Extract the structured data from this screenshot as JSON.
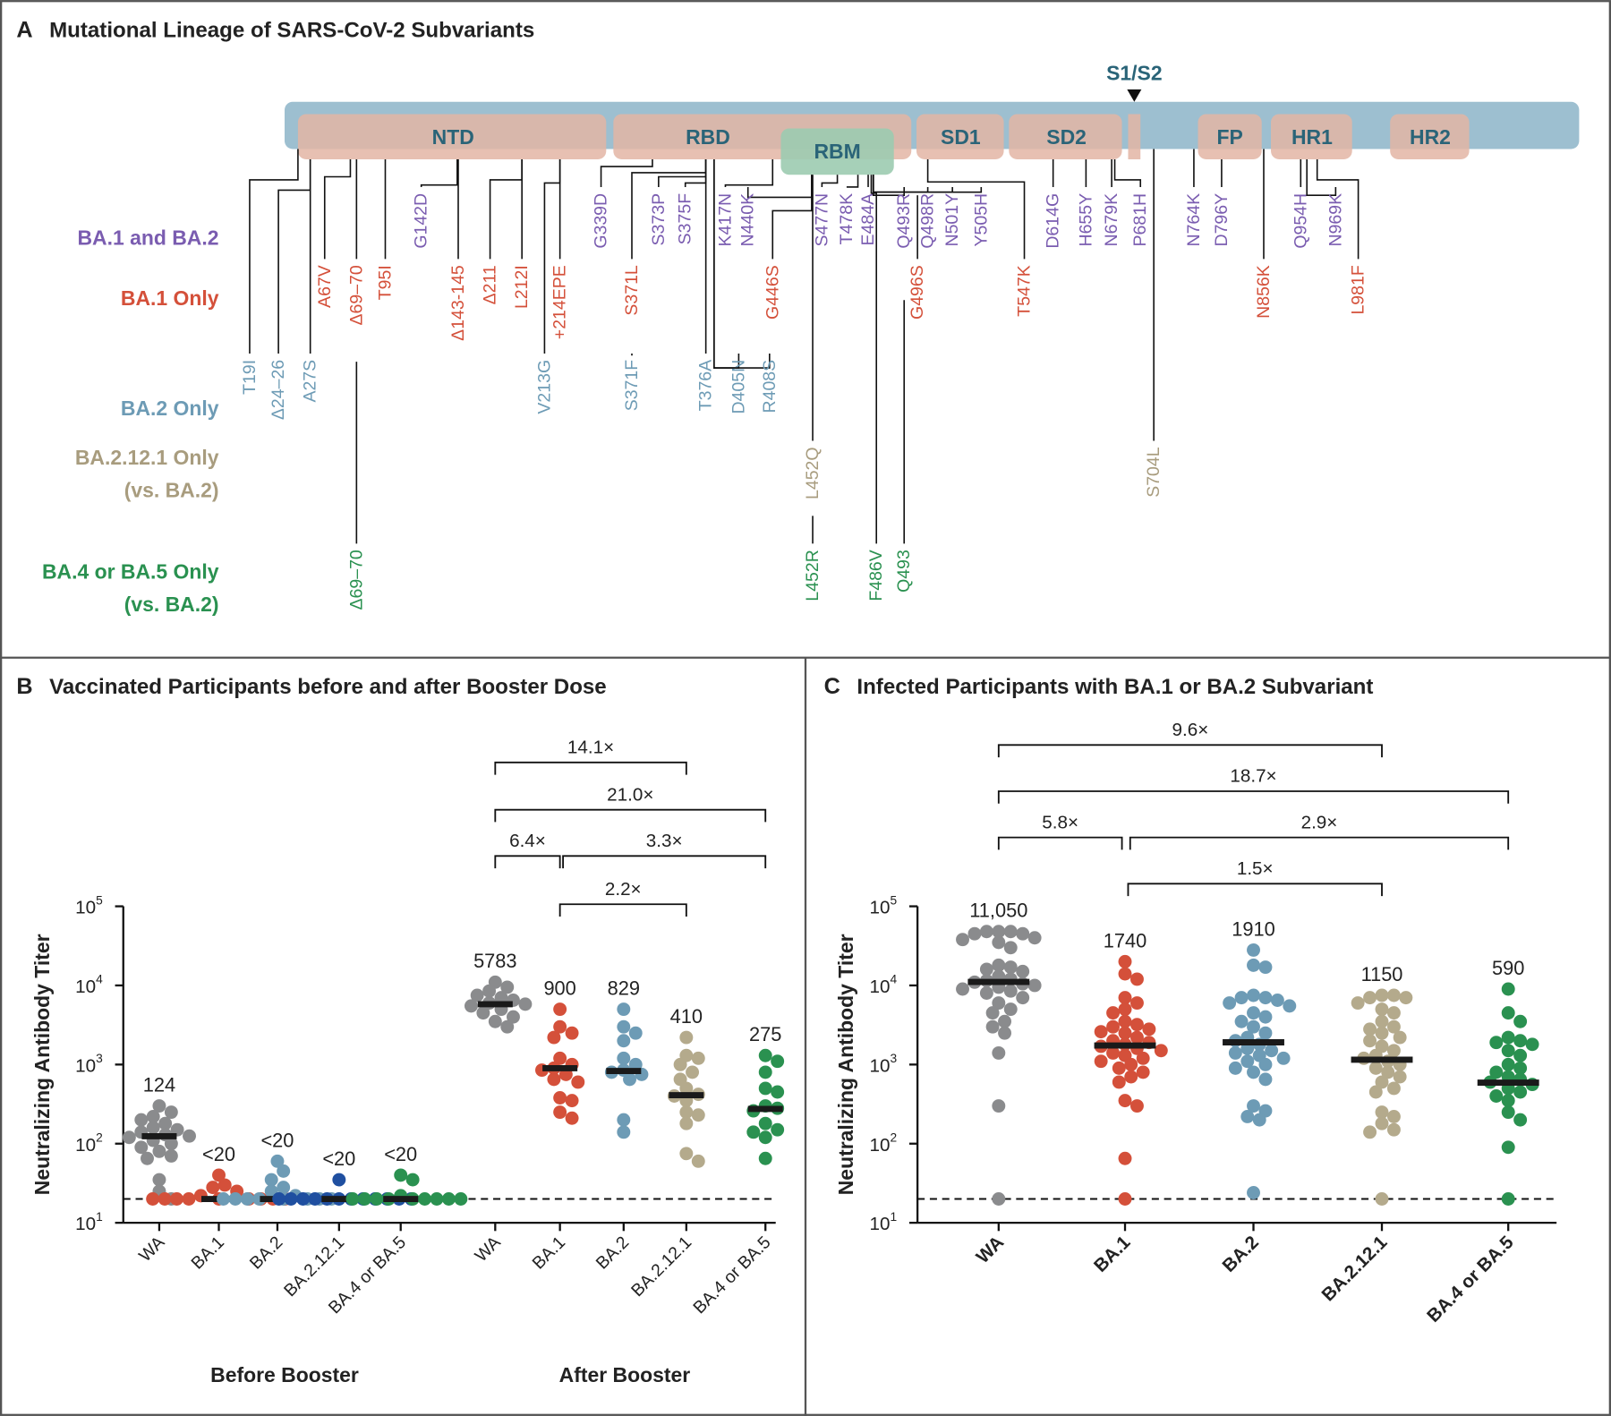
{
  "panel_a": {
    "letter": "A",
    "title": "Mutational Lineage of SARS-CoV-2 Subvariants",
    "cleavage_label": "S1/S2",
    "domains": [
      "NTD",
      "RBD",
      "RBM",
      "SD1",
      "SD2",
      "FP",
      "HR1",
      "HR2"
    ],
    "colors": {
      "bar": "#9dbfd0",
      "domain": "#e3b5a4",
      "rbm": "#9ccbb0",
      "domain_text": "#2a6478"
    },
    "groups": {
      "both": {
        "label": "BA.1 and BA.2",
        "color": "#7a5cb0"
      },
      "ba1": {
        "label": "BA.1 Only",
        "color": "#d4503a"
      },
      "ba2": {
        "label": "BA.2 Only",
        "color": "#6d9bb5"
      },
      "ba2121": {
        "label": "BA.2.12.1 Only",
        "sub": "(vs. BA.2)",
        "color": "#a89c7e"
      },
      "ba45": {
        "label": "BA.4 or BA.5 Only",
        "sub": "(vs. BA.2)",
        "color": "#2a9150"
      }
    },
    "mutations": [
      {
        "label": "T19I",
        "group": "ba2"
      },
      {
        "label": "Δ24–26",
        "group": "ba2"
      },
      {
        "label": "A27S",
        "group": "ba2"
      },
      {
        "label": "A67V",
        "group": "ba1"
      },
      {
        "label": "Δ69–70",
        "group": "ba1"
      },
      {
        "label": "Δ69–70",
        "group": "ba45"
      },
      {
        "label": "T95I",
        "group": "ba1"
      },
      {
        "label": "G142D",
        "group": "both"
      },
      {
        "label": "Δ143-145",
        "group": "ba1"
      },
      {
        "label": "Δ211",
        "group": "ba1"
      },
      {
        "label": "L212I",
        "group": "ba1"
      },
      {
        "label": "V213G",
        "group": "ba2"
      },
      {
        "label": "+214EPE",
        "group": "ba1"
      },
      {
        "label": "G339D",
        "group": "both"
      },
      {
        "label": "S371L",
        "group": "ba1"
      },
      {
        "label": "S371F",
        "group": "ba2"
      },
      {
        "label": "S373P",
        "group": "both"
      },
      {
        "label": "S375F",
        "group": "both"
      },
      {
        "label": "T376A",
        "group": "ba2"
      },
      {
        "label": "K417N",
        "group": "both"
      },
      {
        "label": "N440K",
        "group": "both"
      },
      {
        "label": "D405N",
        "group": "ba2"
      },
      {
        "label": "R408S",
        "group": "ba2"
      },
      {
        "label": "G446S",
        "group": "ba1"
      },
      {
        "label": "L452Q",
        "group": "ba2121"
      },
      {
        "label": "L452R",
        "group": "ba45"
      },
      {
        "label": "S477N",
        "group": "both"
      },
      {
        "label": "T478K",
        "group": "both"
      },
      {
        "label": "E484A",
        "group": "both"
      },
      {
        "label": "F486V",
        "group": "ba45"
      },
      {
        "label": "Q493R",
        "group": "both"
      },
      {
        "label": "G496S",
        "group": "ba1"
      },
      {
        "label": "Q493",
        "group": "ba45"
      },
      {
        "label": "Q498R",
        "group": "both"
      },
      {
        "label": "N501Y",
        "group": "both"
      },
      {
        "label": "Y505H",
        "group": "both"
      },
      {
        "label": "T547K",
        "group": "ba1"
      },
      {
        "label": "D614G",
        "group": "both"
      },
      {
        "label": "H655Y",
        "group": "both"
      },
      {
        "label": "N679K",
        "group": "both"
      },
      {
        "label": "P681H",
        "group": "both"
      },
      {
        "label": "S704L",
        "group": "ba2121"
      },
      {
        "label": "N764K",
        "group": "both"
      },
      {
        "label": "D796Y",
        "group": "both"
      },
      {
        "label": "N856K",
        "group": "ba1"
      },
      {
        "label": "Q954H",
        "group": "both"
      },
      {
        "label": "N969K",
        "group": "both"
      },
      {
        "label": "L981F",
        "group": "ba1"
      }
    ]
  },
  "chart_data": [
    {
      "type": "scatter",
      "letter": "B",
      "title": "Vaccinated Participants before and after Booster Dose",
      "ylabel": "Neutralizing Antibody Titer",
      "yscale": "log",
      "ylim": [
        10,
        100000
      ],
      "y_ticks": [
        10,
        100,
        1000,
        10000,
        100000
      ],
      "detection_limit": 20,
      "section_labels": [
        "Before Booster",
        "After Booster"
      ],
      "categories": [
        "WA",
        "BA.1",
        "BA.2",
        "BA.2.12.1",
        "BA.4 or BA.5",
        "WA",
        "BA.1",
        "BA.2",
        "BA.2.12.1",
        "BA.4 or BA.5"
      ],
      "medians": [
        124,
        20,
        20,
        20,
        20,
        5783,
        900,
        829,
        410,
        275
      ],
      "median_labels": [
        "124",
        "<20",
        "<20",
        "<20",
        "<20",
        "5783",
        "900",
        "829",
        "410",
        "275"
      ],
      "colors": [
        "#8a8b8d",
        "#d4503a",
        "#6d9bb5",
        "#1f4fa0",
        "#2a9150",
        "#8a8b8d",
        "#d4503a",
        "#6d9bb5",
        "#b4aa8c",
        "#2a9150"
      ],
      "points": [
        [
          300,
          250,
          220,
          200,
          180,
          160,
          150,
          140,
          130,
          125,
          120,
          110,
          100,
          90,
          80,
          70,
          65,
          35,
          25,
          20
        ],
        [
          40,
          30,
          28,
          25,
          22,
          20,
          20,
          20,
          20,
          20,
          20,
          20,
          20,
          20
        ],
        [
          60,
          45,
          35,
          28,
          25,
          22,
          20,
          20,
          20,
          20,
          20,
          20,
          20,
          20
        ],
        [
          35,
          20,
          20,
          20,
          20,
          20,
          20,
          20,
          20,
          20,
          20,
          20,
          20
        ],
        [
          40,
          35,
          22,
          20,
          20,
          20,
          20,
          20,
          20,
          20,
          20,
          20
        ],
        [
          11000,
          9500,
          8500,
          7500,
          7000,
          6500,
          6000,
          5800,
          5500,
          5000,
          4500,
          4000,
          3500,
          3000
        ],
        [
          5000,
          3000,
          2500,
          2200,
          1200,
          1000,
          900,
          850,
          750,
          650,
          600,
          380,
          350,
          250,
          210
        ],
        [
          5000,
          3000,
          2500,
          2000,
          1200,
          1000,
          850,
          800,
          750,
          650,
          200,
          140
        ],
        [
          2200,
          1300,
          1200,
          1000,
          800,
          650,
          500,
          420,
          400,
          350,
          250,
          230,
          180,
          75,
          60
        ],
        [
          1300,
          1100,
          800,
          500,
          450,
          300,
          280,
          260,
          180,
          150,
          140,
          120,
          65
        ]
      ],
      "comparisons": [
        {
          "from": 5,
          "to": 8,
          "label": "14.1×"
        },
        {
          "from": 5,
          "to": 9,
          "label": "21.0×"
        },
        {
          "from": 5,
          "to": 6,
          "label": "6.4×"
        },
        {
          "from": 6,
          "to": 9,
          "label": "3.3×"
        },
        {
          "from": 6,
          "to": 8,
          "label": "2.2×"
        }
      ]
    },
    {
      "type": "scatter",
      "letter": "C",
      "title": "Infected Participants with BA.1 or BA.2 Subvariant",
      "ylabel": "Neutralizing Antibody Titer",
      "yscale": "log",
      "ylim": [
        10,
        100000
      ],
      "y_ticks": [
        10,
        100,
        1000,
        10000,
        100000
      ],
      "detection_limit": 20,
      "categories": [
        "WA",
        "BA.1",
        "BA.2",
        "BA.2.12.1",
        "BA.4 or BA.5"
      ],
      "medians": [
        11050,
        1740,
        1910,
        1150,
        590
      ],
      "median_labels": [
        "11,050",
        "1740",
        "1910",
        "1150",
        "590"
      ],
      "colors": [
        "#8a8b8d",
        "#d4503a",
        "#6d9bb5",
        "#b4aa8c",
        "#2a9150"
      ],
      "points": [
        [
          48000,
          48000,
          48000,
          45000,
          45000,
          40000,
          38000,
          35000,
          30000,
          18000,
          17000,
          16000,
          15000,
          13000,
          12000,
          11500,
          11000,
          10500,
          10000,
          9500,
          9000,
          8500,
          8000,
          7000,
          6000,
          5000,
          4500,
          3500,
          3000,
          2500,
          1400,
          300,
          20
        ],
        [
          20000,
          14000,
          12000,
          7000,
          6000,
          5000,
          4500,
          3500,
          3200,
          3000,
          2800,
          2600,
          2500,
          2200,
          2000,
          1900,
          1800,
          1700,
          1600,
          1500,
          1400,
          1300,
          1200,
          1100,
          1000,
          900,
          800,
          700,
          600,
          350,
          300,
          65,
          20
        ],
        [
          28000,
          18000,
          17000,
          7500,
          7000,
          7000,
          6500,
          6000,
          5500,
          4500,
          4000,
          3500,
          3000,
          2500,
          2200,
          2000,
          1800,
          1600,
          1500,
          1400,
          1300,
          1200,
          1100,
          1000,
          900,
          800,
          650,
          300,
          260,
          220,
          200,
          24
        ],
        [
          7500,
          7500,
          7000,
          7000,
          6000,
          5000,
          4500,
          3500,
          3000,
          2800,
          2500,
          2200,
          2000,
          1700,
          1500,
          1300,
          1200,
          1100,
          1000,
          900,
          800,
          700,
          600,
          500,
          450,
          250,
          220,
          180,
          150,
          140,
          20
        ],
        [
          9000,
          4500,
          3500,
          2200,
          2000,
          1900,
          1800,
          1500,
          1300,
          1000,
          900,
          800,
          700,
          650,
          600,
          560,
          500,
          450,
          400,
          350,
          250,
          200,
          90,
          20
        ]
      ],
      "comparisons": [
        {
          "from": 0,
          "to": 3,
          "label": "9.6×"
        },
        {
          "from": 0,
          "to": 4,
          "label": "18.7×"
        },
        {
          "from": 0,
          "to": 1,
          "label": "5.8×"
        },
        {
          "from": 1,
          "to": 4,
          "label": "2.9×"
        },
        {
          "from": 1,
          "to": 3,
          "label": "1.5×"
        }
      ]
    }
  ]
}
